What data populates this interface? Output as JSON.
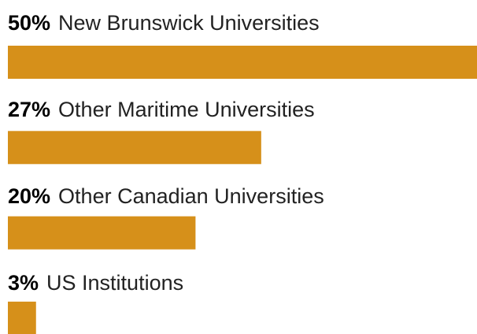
{
  "chart_data": {
    "type": "bar",
    "orientation": "horizontal",
    "categories": [
      "New Brunswick Universities",
      "Other Maritime Universities",
      "Other Canadian Universities",
      "US Institutions"
    ],
    "values": [
      50,
      27,
      20,
      3
    ],
    "value_labels": [
      "50%",
      "27%",
      "20%",
      "3%"
    ],
    "color": "#d6901a",
    "xlim": [
      0,
      50
    ]
  }
}
